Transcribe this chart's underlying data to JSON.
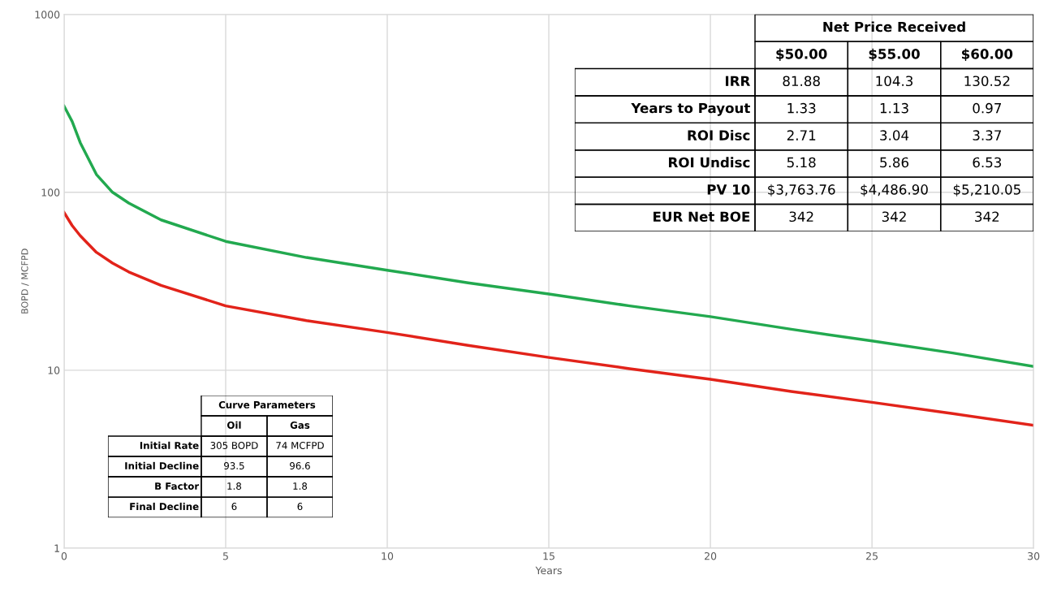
{
  "chart_data": [
    {
      "type": "line",
      "xlabel": "Years",
      "ylabel": "BOPD / MCFPD",
      "log": "y",
      "xlim": [
        0,
        30
      ],
      "ylim": [
        1,
        1000
      ],
      "xticks": [
        0,
        5,
        10,
        15,
        20,
        25,
        30
      ],
      "yticks": [
        1,
        10,
        100,
        1000
      ],
      "grid": true,
      "marker": "none",
      "line_style": "solid",
      "series": [
        {
          "color": "#22a94f",
          "x": [
            0,
            0.25,
            0.5,
            1,
            1.5,
            2,
            3,
            5,
            7.5,
            10,
            12.5,
            15,
            17.5,
            20,
            22.5,
            25,
            27.5,
            30
          ],
          "values": [
            305,
            250,
            190,
            126,
            100,
            87,
            70,
            53,
            43,
            36.5,
            31,
            26.8,
            23,
            20,
            17,
            14.6,
            12.5,
            10.5
          ]
        },
        {
          "color": "#e2231a",
          "x": [
            0,
            0.25,
            0.5,
            1,
            1.5,
            2,
            3,
            5,
            7.5,
            10,
            12.5,
            15,
            17.5,
            20,
            22.5,
            25,
            27.5,
            30
          ],
          "values": [
            77,
            65,
            57,
            46,
            40,
            35.7,
            30,
            23,
            19,
            16.3,
            13.8,
            11.8,
            10.2,
            8.9,
            7.6,
            6.6,
            5.7,
            4.9
          ]
        }
      ]
    },
    {
      "type": "other",
      "title": "Net Price Received",
      "categories": [
        "$50.00",
        "$55.00",
        "$60.00"
      ],
      "y_categories": [
        "IRR",
        "Years to Payout",
        "ROI Disc",
        "ROI Undisc",
        "PV 10",
        "EUR Net BOE"
      ],
      "cell_labels": [
        [
          "81.88",
          "104.3",
          "130.52"
        ],
        [
          "1.33",
          "1.13",
          "0.97"
        ],
        [
          "2.71",
          "3.04",
          "3.37"
        ],
        [
          "5.18",
          "5.86",
          "6.53"
        ],
        [
          "$3,763.76",
          "$4,486.90",
          "$5,210.05"
        ],
        [
          "342",
          "342",
          "342"
        ]
      ]
    },
    {
      "type": "other",
      "title": "Curve Parameters",
      "categories": [
        "Oil",
        "Gas"
      ],
      "y_categories": [
        "Initial Rate",
        "Initial Decline",
        "B Factor",
        "Final Decline"
      ],
      "cell_labels": [
        [
          "305 BOPD",
          "74 MCFPD"
        ],
        [
          "93.5",
          "96.6"
        ],
        [
          "1.8",
          "1.8"
        ],
        [
          "6",
          "6"
        ]
      ]
    }
  ]
}
